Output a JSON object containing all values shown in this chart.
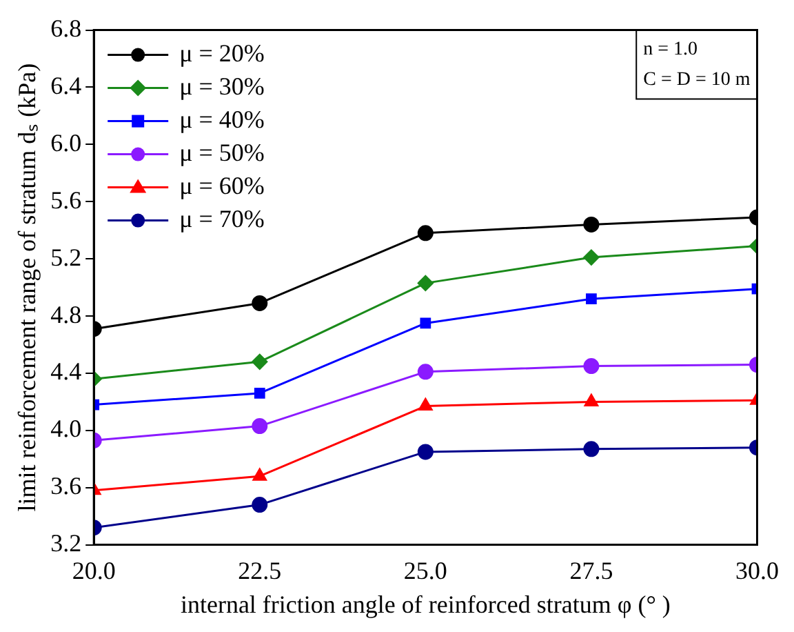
{
  "chart_data": {
    "type": "line",
    "xlabel": "internal friction angle of reinforced stratum φ (° )",
    "ylabel": "limit reinforcement range of stratum dₛ (kPa)",
    "x": [
      20,
      22.5,
      25,
      27.5,
      30
    ],
    "xlim": [
      20,
      30
    ],
    "xticks": [
      {
        "value": 20,
        "label": "20.0"
      },
      {
        "value": 22.5,
        "label": "22.5"
      },
      {
        "value": 25,
        "label": "25.0"
      },
      {
        "value": 27.5,
        "label": "27.5"
      },
      {
        "value": 30,
        "label": "30.0"
      }
    ],
    "ylim": [
      3.2,
      6.8
    ],
    "yticks": [
      3.2,
      3.6,
      {
        "value": 4,
        "label": "4.0"
      },
      4.4,
      4.8,
      5.2,
      5.6,
      {
        "value": 6,
        "label": "6.0"
      },
      6.4,
      6.8
    ],
    "grid": false,
    "legend": "top left",
    "line_style": "solid",
    "annotations": [
      "n = 1.0",
      "C = D = 10 m"
    ],
    "series": [
      {
        "name": "μ = 20%",
        "color": "#000000",
        "marker": "circle",
        "values": [
          4.71,
          4.89,
          5.38,
          5.44,
          5.49
        ]
      },
      {
        "name": "μ = 30%",
        "color": "#1a8a1a",
        "marker": "diamond",
        "values": [
          4.36,
          4.48,
          5.03,
          5.21,
          5.29
        ]
      },
      {
        "name": "μ = 40%",
        "color": "#0000ff",
        "marker": "square",
        "values": [
          4.18,
          4.26,
          4.75,
          4.92,
          4.99
        ]
      },
      {
        "name": "μ = 50%",
        "color": "#8b1aff",
        "marker": "circle",
        "values": [
          3.93,
          4.03,
          4.41,
          4.45,
          4.46
        ]
      },
      {
        "name": "μ = 60%",
        "color": "#ff0000",
        "marker": "triangle",
        "values": [
          3.58,
          3.68,
          4.17,
          4.2,
          4.21
        ]
      },
      {
        "name": "μ = 70%",
        "color": "#00008b",
        "marker": "circle",
        "values": [
          3.32,
          3.48,
          3.85,
          3.87,
          3.88
        ]
      }
    ]
  }
}
